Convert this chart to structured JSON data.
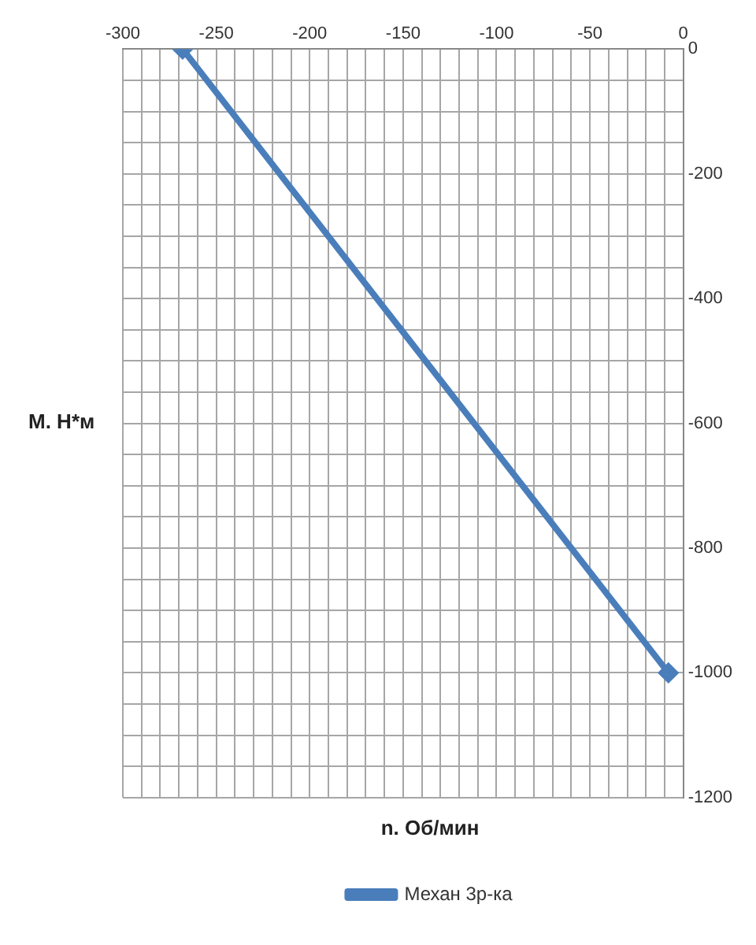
{
  "chart_data": {
    "type": "line",
    "xlabel": "n. Об/мин",
    "ylabel": "M. Н*м",
    "x": [
      -268,
      -8
    ],
    "series": [
      {
        "name": "Механ 3р-ка",
        "color": "#4a7ebb",
        "values": [
          0,
          -1000
        ]
      }
    ],
    "xlim": [
      -300,
      0
    ],
    "xticks": [
      -300,
      {
        "value": -290,
        "label": null
      },
      {
        "value": -280,
        "label": null
      },
      {
        "value": -270,
        "label": null
      },
      {
        "value": -260,
        "label": null
      },
      -250,
      {
        "value": -240,
        "label": null
      },
      {
        "value": -230,
        "label": null
      },
      {
        "value": -220,
        "label": null
      },
      {
        "value": -210,
        "label": null
      },
      -200,
      {
        "value": -190,
        "label": null
      },
      {
        "value": -180,
        "label": null
      },
      {
        "value": -170,
        "label": null
      },
      {
        "value": -160,
        "label": null
      },
      -150,
      {
        "value": -140,
        "label": null
      },
      {
        "value": -130,
        "label": null
      },
      {
        "value": -120,
        "label": null
      },
      {
        "value": -110,
        "label": null
      },
      -100,
      {
        "value": -90,
        "label": null
      },
      {
        "value": -80,
        "label": null
      },
      {
        "value": -70,
        "label": null
      },
      {
        "value": -60,
        "label": null
      },
      -50,
      {
        "value": -40,
        "label": null
      },
      {
        "value": -30,
        "label": null
      },
      {
        "value": -20,
        "label": null
      },
      {
        "value": -10,
        "label": null
      },
      0
    ],
    "ylim": [
      -1200,
      0
    ],
    "yticks": [
      -1200,
      {
        "value": -1150,
        "label": null
      },
      {
        "value": -1100,
        "label": null
      },
      {
        "value": -1050,
        "label": null
      },
      -1000,
      {
        "value": -950,
        "label": null
      },
      {
        "value": -900,
        "label": null
      },
      {
        "value": -850,
        "label": null
      },
      -800,
      {
        "value": -750,
        "label": null
      },
      {
        "value": -700,
        "label": null
      },
      {
        "value": -650,
        "label": null
      },
      -600,
      {
        "value": -550,
        "label": null
      },
      {
        "value": -500,
        "label": null
      },
      {
        "value": -450,
        "label": null
      },
      -400,
      {
        "value": -350,
        "label": null
      },
      {
        "value": -300,
        "label": null
      },
      {
        "value": -250,
        "label": null
      },
      -200,
      {
        "value": -150,
        "label": null
      },
      {
        "value": -100,
        "label": null
      },
      {
        "value": -50,
        "label": null
      },
      0
    ],
    "grid": true,
    "legend": "bottom",
    "marker": "diamond",
    "line_style": "solid"
  }
}
